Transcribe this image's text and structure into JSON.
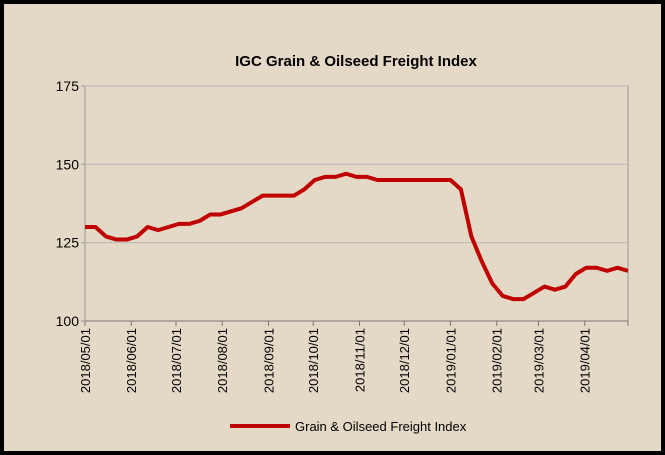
{
  "chart_data": {
    "type": "line",
    "title": "IGC Grain & Oilseed Freight Index",
    "x": [
      "2018/05/01",
      "2018/05/08",
      "2018/05/15",
      "2018/05/22",
      "2018/05/29",
      "2018/06/05",
      "2018/06/12",
      "2018/06/19",
      "2018/06/26",
      "2018/07/03",
      "2018/07/10",
      "2018/07/17",
      "2018/07/24",
      "2018/07/31",
      "2018/08/07",
      "2018/08/14",
      "2018/08/21",
      "2018/08/28",
      "2018/09/04",
      "2018/09/11",
      "2018/09/18",
      "2018/09/25",
      "2018/10/02",
      "2018/10/09",
      "2018/10/16",
      "2018/10/23",
      "2018/10/30",
      "2018/11/06",
      "2018/11/13",
      "2018/11/20",
      "2018/11/27",
      "2018/12/04",
      "2018/12/11",
      "2018/12/18",
      "2018/12/25",
      "2019/01/01",
      "2019/01/08",
      "2019/01/15",
      "2019/01/22",
      "2019/01/29",
      "2019/02/05",
      "2019/02/12",
      "2019/02/19",
      "2019/02/26",
      "2019/03/05",
      "2019/03/12",
      "2019/03/19",
      "2019/03/26",
      "2019/04/02",
      "2019/04/09",
      "2019/04/16",
      "2019/04/23",
      "2019/04/30"
    ],
    "series": [
      {
        "name": "Grain & Oilseed Freight Index",
        "color": "#c00000",
        "values": [
          130,
          130,
          127,
          126,
          126,
          127,
          130,
          129,
          130,
          131,
          131,
          132,
          134,
          134,
          135,
          136,
          138,
          140,
          140,
          140,
          140,
          142,
          145,
          146,
          146,
          147,
          146,
          146,
          145,
          145,
          145,
          145,
          145,
          145,
          145,
          145,
          142,
          127,
          119,
          112,
          108,
          107,
          107,
          109,
          111,
          110,
          111,
          115,
          117,
          117,
          116,
          117,
          116
        ]
      }
    ],
    "xlim": [
      "2018/05/01",
      "2019/04/30"
    ],
    "xticks": [
      "2018/05/01",
      "2018/06/01",
      "2018/07/01",
      "2018/08/01",
      "2018/09/01",
      "2018/10/01",
      "2018/11/01",
      "2018/12/01",
      "2019/01/01",
      "2019/02/01",
      "2019/03/01",
      "2019/04/01"
    ],
    "ylim": [
      100,
      175
    ],
    "yticks": [
      100,
      125,
      150,
      175
    ],
    "grid": true,
    "legend": "bottom"
  }
}
